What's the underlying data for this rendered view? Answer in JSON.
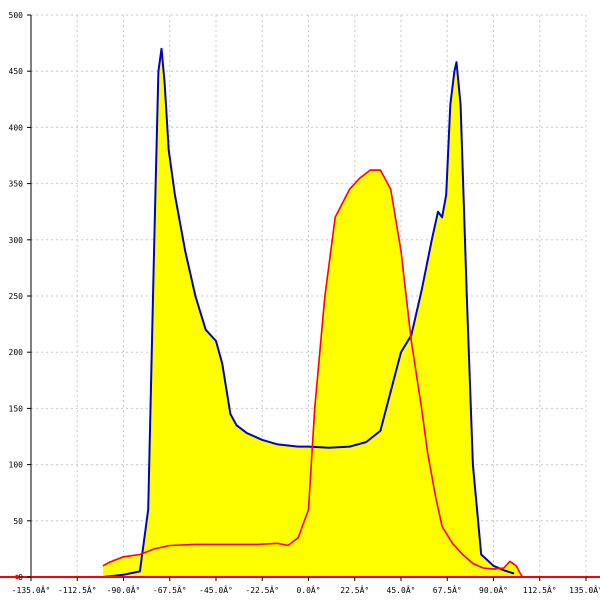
{
  "chart_data": {
    "type": "area",
    "title": "",
    "xlabel": "",
    "ylabel": "",
    "xlim": [
      -135,
      135
    ],
    "ylim": [
      0,
      500
    ],
    "grid": true,
    "legend": "none",
    "x_ticks": [
      -135,
      -112.5,
      -90,
      -67.5,
      -45,
      -22.5,
      0,
      22.5,
      45,
      67.5,
      90,
      112.5,
      135
    ],
    "x_tick_labels": [
      "-135.0Â°",
      "-112.5Â°",
      "-90.0Â°",
      "-67.5Â°",
      "-45.0Â°",
      "-22.5Â°",
      "0.0Â°",
      "22.5Â°",
      "45.0Â°",
      "67.5Â°",
      "90.0Â°",
      "112.5Â°",
      "135.0Â°"
    ],
    "y_ticks": [
      0,
      50,
      100,
      150,
      200,
      250,
      300,
      350,
      400,
      450,
      500
    ],
    "y_tick_labels": [
      "0",
      "50",
      "100",
      "150",
      "200",
      "250",
      "300",
      "350",
      "400",
      "450",
      "500"
    ],
    "colors": {
      "fill": "#ffff00",
      "blue_series": "#0000cc",
      "red_series": "#ff0000",
      "axis": "#000000",
      "baseline": "#ff0000",
      "grid": "#c8c8c8"
    },
    "series": [
      {
        "color": "#0000cc",
        "points": [
          [
            -100,
            0
          ],
          [
            -90,
            2
          ],
          [
            -82,
            5
          ],
          [
            -78,
            60
          ],
          [
            -75,
            300
          ],
          [
            -73,
            450
          ],
          [
            -71.5,
            470
          ],
          [
            -70,
            440
          ],
          [
            -68,
            380
          ],
          [
            -65,
            340
          ],
          [
            -60,
            290
          ],
          [
            -55,
            250
          ],
          [
            -50,
            220
          ],
          [
            -45,
            210
          ],
          [
            -42,
            190
          ],
          [
            -38,
            145
          ],
          [
            -35,
            135
          ],
          [
            -30,
            128
          ],
          [
            -22.5,
            122
          ],
          [
            -15,
            118
          ],
          [
            -5,
            116
          ],
          [
            0,
            116
          ],
          [
            10,
            115
          ],
          [
            20,
            116
          ],
          [
            28,
            120
          ],
          [
            35,
            130
          ],
          [
            40,
            165
          ],
          [
            45,
            200
          ],
          [
            50,
            215
          ],
          [
            55,
            255
          ],
          [
            60,
            300
          ],
          [
            63,
            325
          ],
          [
            65,
            320
          ],
          [
            67,
            340
          ],
          [
            69,
            420
          ],
          [
            71,
            450
          ],
          [
            72,
            458
          ],
          [
            74,
            420
          ],
          [
            77,
            250
          ],
          [
            80,
            100
          ],
          [
            84,
            20
          ],
          [
            90,
            10
          ],
          [
            95,
            6
          ],
          [
            100,
            3
          ]
        ]
      },
      {
        "color": "#ff0000",
        "points": [
          [
            -100,
            10
          ],
          [
            -97,
            13
          ],
          [
            -90,
            18
          ],
          [
            -82,
            20
          ],
          [
            -75,
            25
          ],
          [
            -67.5,
            28
          ],
          [
            -55,
            29
          ],
          [
            -45,
            29
          ],
          [
            -35,
            29
          ],
          [
            -25,
            29
          ],
          [
            -15,
            30
          ],
          [
            -10,
            28
          ],
          [
            -5,
            35
          ],
          [
            0,
            60
          ],
          [
            3,
            150
          ],
          [
            8,
            250
          ],
          [
            13,
            320
          ],
          [
            20,
            345
          ],
          [
            25,
            355
          ],
          [
            30,
            362
          ],
          [
            35,
            362
          ],
          [
            40,
            345
          ],
          [
            45,
            290
          ],
          [
            50,
            210
          ],
          [
            55,
            150
          ],
          [
            58,
            110
          ],
          [
            62,
            70
          ],
          [
            65,
            45
          ],
          [
            70,
            30
          ],
          [
            75,
            20
          ],
          [
            80,
            12
          ],
          [
            85,
            8
          ],
          [
            90,
            7
          ],
          [
            95,
            8
          ],
          [
            98,
            14
          ],
          [
            101,
            10
          ],
          [
            104,
            0
          ]
        ]
      }
    ]
  }
}
